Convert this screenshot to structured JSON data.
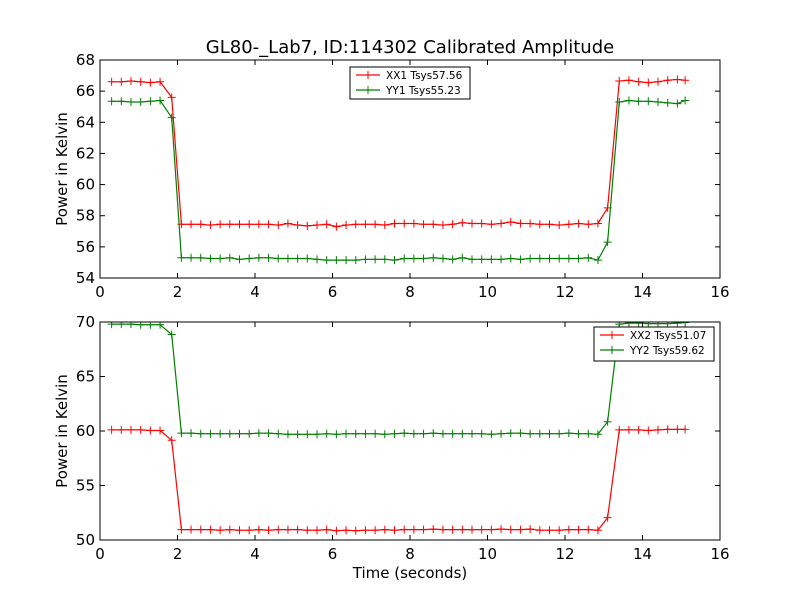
{
  "title": "GL80-_Lab7, ID:114302 Calibrated Amplitude",
  "colors": {
    "red": "#ff0000",
    "green": "#007f00"
  },
  "chart_data": [
    {
      "type": "line",
      "xlabel": "",
      "ylabel": "Power in Kelvin",
      "xlim": [
        0,
        16
      ],
      "ylim": [
        54,
        68
      ],
      "xticks": [
        0,
        2,
        4,
        6,
        8,
        10,
        12,
        14,
        16
      ],
      "yticks": [
        54,
        56,
        58,
        60,
        62,
        64,
        66,
        68
      ],
      "legend_position": "top-center",
      "x": [
        0.3,
        0.55,
        0.8,
        1.05,
        1.3,
        1.55,
        1.85,
        2.1,
        2.35,
        2.6,
        2.85,
        3.1,
        3.35,
        3.6,
        3.85,
        4.1,
        4.35,
        4.6,
        4.85,
        5.1,
        5.35,
        5.6,
        5.85,
        6.1,
        6.35,
        6.6,
        6.85,
        7.1,
        7.35,
        7.6,
        7.85,
        8.1,
        8.35,
        8.6,
        8.85,
        9.1,
        9.35,
        9.6,
        9.85,
        10.1,
        10.35,
        10.6,
        10.85,
        11.1,
        11.35,
        11.6,
        11.85,
        12.1,
        12.35,
        12.6,
        12.85,
        13.1,
        13.4,
        13.65,
        13.9,
        14.15,
        14.4,
        14.65,
        14.9,
        15.1
      ],
      "series": [
        {
          "name": "XX1 Tsys57.56",
          "color": "#ff0000",
          "values": [
            66.6,
            66.6,
            66.65,
            66.6,
            66.55,
            66.6,
            65.6,
            57.45,
            57.45,
            57.45,
            57.4,
            57.45,
            57.45,
            57.45,
            57.45,
            57.45,
            57.45,
            57.4,
            57.5,
            57.4,
            57.35,
            57.4,
            57.45,
            57.3,
            57.4,
            57.45,
            57.45,
            57.45,
            57.4,
            57.5,
            57.5,
            57.5,
            57.45,
            57.45,
            57.4,
            57.45,
            57.55,
            57.5,
            57.5,
            57.45,
            57.5,
            57.6,
            57.5,
            57.5,
            57.45,
            57.45,
            57.4,
            57.45,
            57.5,
            57.45,
            57.5,
            58.5,
            66.65,
            66.7,
            66.6,
            66.55,
            66.6,
            66.7,
            66.75,
            66.7
          ]
        },
        {
          "name": "YY1 Tsys55.23",
          "color": "#007f00",
          "values": [
            65.35,
            65.35,
            65.3,
            65.3,
            65.35,
            65.4,
            64.3,
            55.3,
            55.3,
            55.3,
            55.25,
            55.25,
            55.3,
            55.2,
            55.25,
            55.3,
            55.3,
            55.25,
            55.25,
            55.25,
            55.25,
            55.2,
            55.15,
            55.15,
            55.15,
            55.15,
            55.2,
            55.2,
            55.2,
            55.15,
            55.25,
            55.25,
            55.25,
            55.3,
            55.25,
            55.2,
            55.3,
            55.2,
            55.2,
            55.2,
            55.2,
            55.25,
            55.2,
            55.25,
            55.25,
            55.25,
            55.25,
            55.25,
            55.25,
            55.3,
            55.15,
            56.3,
            65.3,
            65.4,
            65.35,
            65.35,
            65.3,
            65.25,
            65.2,
            65.4
          ]
        }
      ]
    },
    {
      "type": "line",
      "xlabel": "Time (seconds)",
      "ylabel": "Power in Kelvin",
      "xlim": [
        0,
        16
      ],
      "ylim": [
        50,
        70
      ],
      "xticks": [
        0,
        2,
        4,
        6,
        8,
        10,
        12,
        14,
        16
      ],
      "yticks": [
        50,
        55,
        60,
        65,
        70
      ],
      "legend_position": "top-right",
      "x": [
        0.3,
        0.55,
        0.8,
        1.05,
        1.3,
        1.55,
        1.85,
        2.1,
        2.35,
        2.6,
        2.85,
        3.1,
        3.35,
        3.6,
        3.85,
        4.1,
        4.35,
        4.6,
        4.85,
        5.1,
        5.35,
        5.6,
        5.85,
        6.1,
        6.35,
        6.6,
        6.85,
        7.1,
        7.35,
        7.6,
        7.85,
        8.1,
        8.35,
        8.6,
        8.85,
        9.1,
        9.35,
        9.6,
        9.85,
        10.1,
        10.35,
        10.6,
        10.85,
        11.1,
        11.35,
        11.6,
        11.85,
        12.1,
        12.35,
        12.6,
        12.85,
        13.1,
        13.4,
        13.65,
        13.9,
        14.15,
        14.4,
        14.65,
        14.9,
        15.1
      ],
      "series": [
        {
          "name": "XX2 Tsys51.07",
          "color": "#ff0000",
          "values": [
            60.1,
            60.1,
            60.1,
            60.1,
            60.05,
            60.05,
            59.15,
            50.95,
            50.95,
            50.95,
            50.95,
            50.9,
            50.95,
            50.9,
            50.9,
            50.95,
            50.9,
            50.95,
            50.95,
            50.95,
            50.9,
            50.9,
            50.95,
            50.85,
            50.9,
            50.85,
            50.9,
            50.9,
            50.95,
            50.9,
            50.95,
            50.95,
            50.95,
            51.0,
            50.95,
            50.95,
            50.95,
            50.95,
            50.95,
            50.95,
            51.0,
            50.95,
            50.95,
            51.0,
            50.9,
            50.9,
            50.9,
            50.95,
            50.95,
            50.95,
            50.9,
            52.05,
            60.1,
            60.1,
            60.1,
            60.05,
            60.1,
            60.15,
            60.15,
            60.15
          ]
        },
        {
          "name": "YY2 Tsys59.62",
          "color": "#007f00",
          "values": [
            69.8,
            69.8,
            69.8,
            69.75,
            69.75,
            69.75,
            68.85,
            59.8,
            59.8,
            59.75,
            59.75,
            59.75,
            59.75,
            59.75,
            59.75,
            59.8,
            59.8,
            59.75,
            59.7,
            59.7,
            59.7,
            59.7,
            59.75,
            59.7,
            59.75,
            59.75,
            59.75,
            59.75,
            59.7,
            59.75,
            59.8,
            59.75,
            59.75,
            59.8,
            59.75,
            59.75,
            59.75,
            59.75,
            59.75,
            59.7,
            59.75,
            59.8,
            59.8,
            59.75,
            59.75,
            59.75,
            59.75,
            59.8,
            59.75,
            59.75,
            59.7,
            60.85,
            69.8,
            69.9,
            69.9,
            69.85,
            69.85,
            69.85,
            69.9,
            69.95
          ]
        }
      ]
    }
  ]
}
